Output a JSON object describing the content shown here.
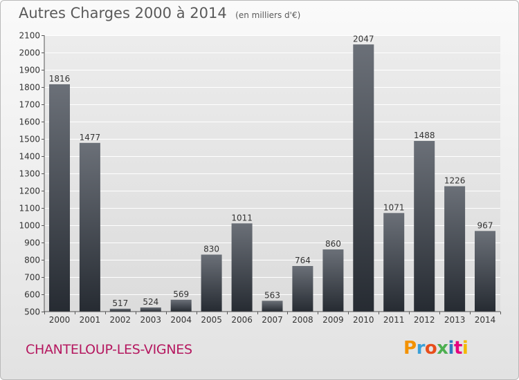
{
  "header": {
    "title": "Autres Charges 2000 à 2014",
    "subtitle": "(en milliers d'€)"
  },
  "footer": {
    "city": "CHANTELOUP-LES-VIGNES",
    "logo": "Proxiti",
    "logo_colors": [
      "#f39200",
      "#3aa0d8",
      "#e84e1b",
      "#4caf50",
      "#2e7bbf",
      "#e5007e",
      "#f5b800"
    ]
  },
  "chart_data": {
    "type": "bar",
    "title": "Autres Charges 2000 à 2014",
    "subtitle": "(en milliers d'€)",
    "xlabel": "",
    "ylabel": "",
    "categories": [
      "2000",
      "2001",
      "2002",
      "2003",
      "2004",
      "2005",
      "2006",
      "2007",
      "2008",
      "2009",
      "2010",
      "2011",
      "2012",
      "2013",
      "2014"
    ],
    "values": [
      1816,
      1477,
      517,
      524,
      569,
      830,
      1011,
      563,
      764,
      860,
      2047,
      1071,
      1488,
      1226,
      967
    ],
    "ylim": [
      500,
      2100
    ],
    "yticks": [
      500,
      600,
      700,
      800,
      900,
      1000,
      1100,
      1200,
      1300,
      1400,
      1500,
      1600,
      1700,
      1800,
      1900,
      2000,
      2100
    ],
    "grid": true,
    "bar_color": "#444a52"
  }
}
